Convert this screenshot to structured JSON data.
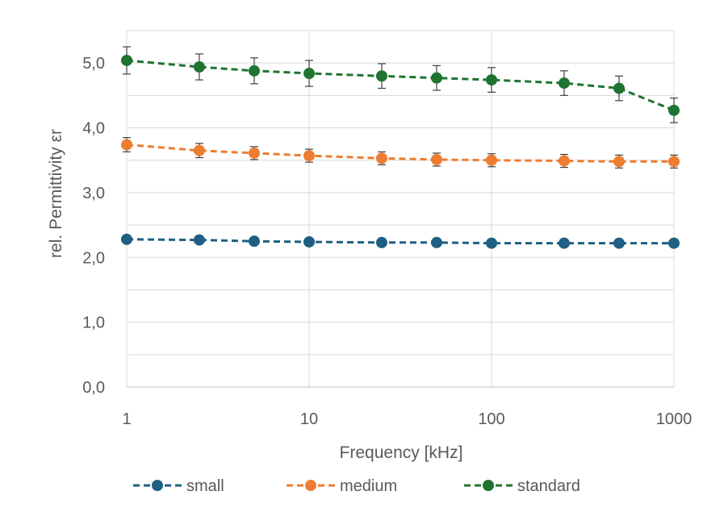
{
  "chart_data": {
    "type": "line",
    "xscale": "log",
    "x": [
      1,
      2.5,
      5,
      10,
      25,
      50,
      100,
      250,
      500,
      1000
    ],
    "xlim": [
      1,
      1000
    ],
    "xticks": [
      "1",
      "10",
      "100",
      "1000"
    ],
    "ylim": [
      0,
      5.5
    ],
    "yticks": [
      "0,0",
      "1,0",
      "2,0",
      "3,0",
      "4,0",
      "5,0"
    ],
    "xlabel": "Frequency [kHz]",
    "ylabel": "rel. Permittivity εr",
    "grid": true,
    "legend_position": "bottom",
    "series": [
      {
        "name": "small",
        "color": "#1f5f83",
        "values": [
          2.28,
          2.27,
          2.25,
          2.24,
          2.23,
          2.23,
          2.22,
          2.22,
          2.22,
          2.22
        ],
        "errors": [
          0.02,
          0.02,
          0.02,
          0.02,
          0.02,
          0.02,
          0.02,
          0.02,
          0.02,
          0.02
        ]
      },
      {
        "name": "medium",
        "color": "#ed7d31",
        "values": [
          3.74,
          3.65,
          3.61,
          3.57,
          3.53,
          3.51,
          3.5,
          3.49,
          3.48,
          3.48
        ],
        "errors": [
          0.11,
          0.11,
          0.1,
          0.1,
          0.1,
          0.1,
          0.1,
          0.1,
          0.1,
          0.1
        ]
      },
      {
        "name": "standard",
        "color": "#1e7430",
        "values": [
          5.04,
          4.94,
          4.88,
          4.84,
          4.8,
          4.77,
          4.74,
          4.69,
          4.61,
          4.27
        ],
        "errors": [
          0.21,
          0.2,
          0.2,
          0.2,
          0.19,
          0.19,
          0.19,
          0.19,
          0.19,
          0.19
        ]
      }
    ]
  }
}
